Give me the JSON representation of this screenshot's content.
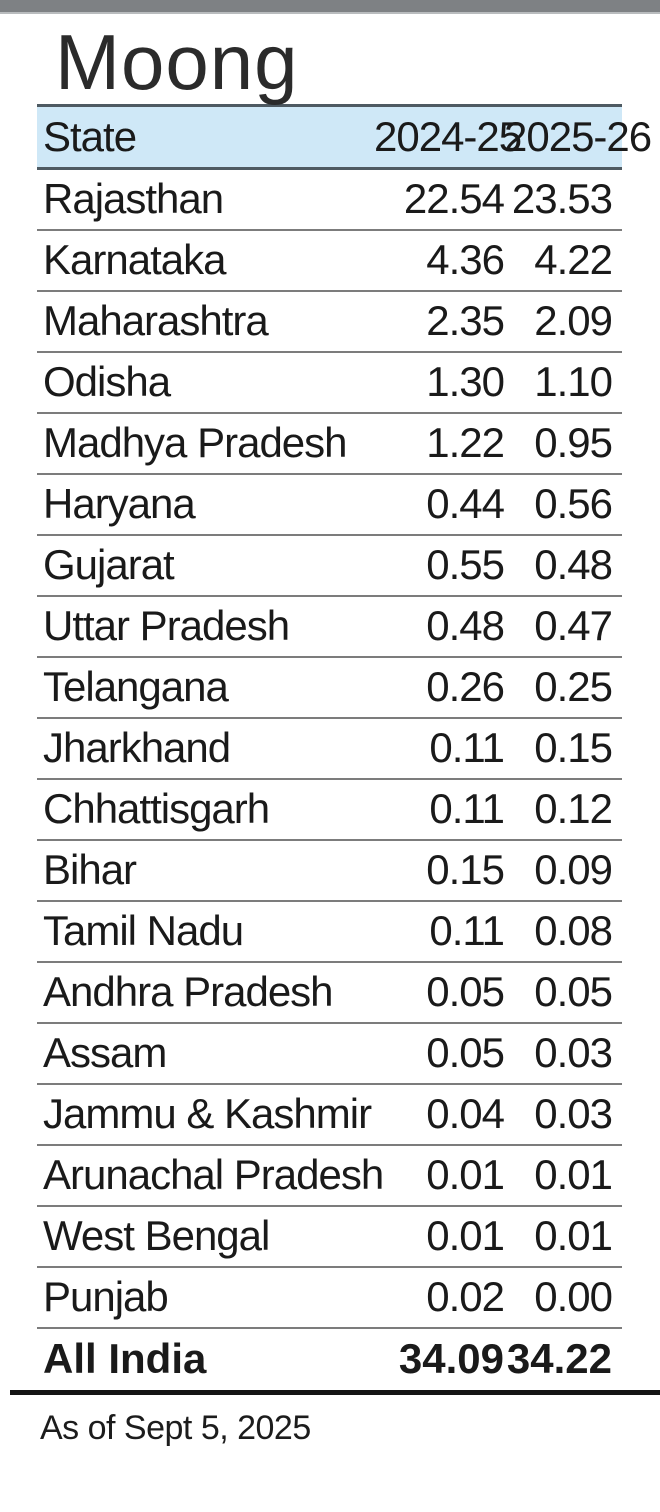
{
  "title": "Moong",
  "footnote": "As of Sept 5, 2025",
  "colors": {
    "top_bar_gray": "#7e8184",
    "header_band_blue": "#cfe8f7",
    "header_border": "#4e5a62",
    "row_separator": "#7c7c7c",
    "text": "#1a1a1a",
    "thick_rule": "#141414"
  },
  "chart_data": {
    "type": "table",
    "title": "Moong",
    "columns": [
      "State",
      "2024-25",
      "2025-26"
    ],
    "rows": [
      [
        "Rajasthan",
        "22.54",
        "23.53"
      ],
      [
        "Karnataka",
        "4.36",
        "4.22"
      ],
      [
        "Maharashtra",
        "2.35",
        "2.09"
      ],
      [
        "Odisha",
        "1.30",
        "1.10"
      ],
      [
        "Madhya Pradesh",
        "1.22",
        "0.95"
      ],
      [
        "Haryana",
        "0.44",
        "0.56"
      ],
      [
        "Gujarat",
        "0.55",
        "0.48"
      ],
      [
        "Uttar Pradesh",
        "0.48",
        "0.47"
      ],
      [
        "Telangana",
        "0.26",
        "0.25"
      ],
      [
        "Jharkhand",
        "0.11",
        "0.15"
      ],
      [
        "Chhattisgarh",
        "0.11",
        "0.12"
      ],
      [
        "Bihar",
        "0.15",
        "0.09"
      ],
      [
        "Tamil Nadu",
        "0.11",
        "0.08"
      ],
      [
        "Andhra Pradesh",
        "0.05",
        "0.05"
      ],
      [
        "Assam",
        "0.05",
        "0.03"
      ],
      [
        "Jammu & Kashmir",
        "0.04",
        "0.03"
      ],
      [
        "Arunachal Pradesh",
        "0.01",
        "0.01"
      ],
      [
        "West Bengal",
        "0.01",
        "0.01"
      ],
      [
        "Punjab",
        "0.02",
        "0.00"
      ]
    ],
    "total_row": [
      "All India",
      "34.09",
      "34.22"
    ],
    "footnote": "As of Sept 5, 2025"
  }
}
